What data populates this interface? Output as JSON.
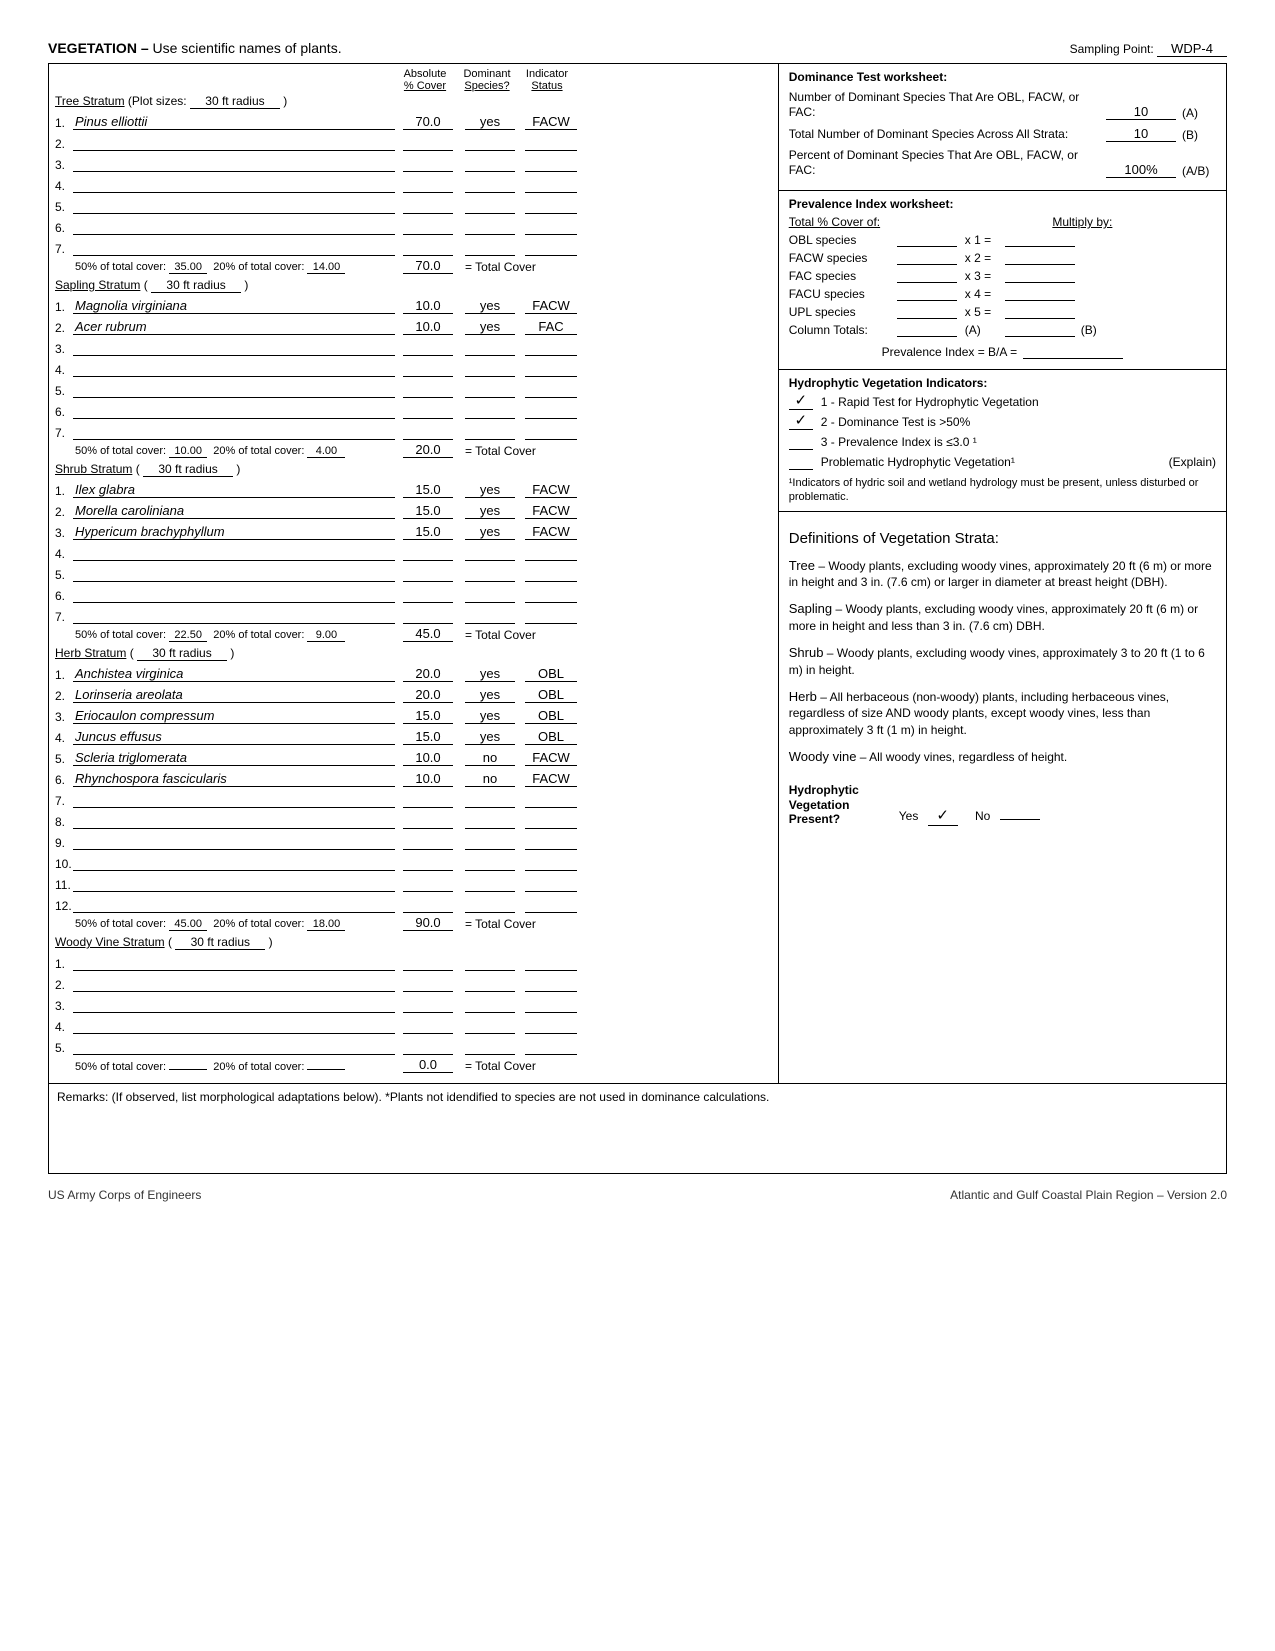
{
  "header": {
    "title_bold": "VEGETATION –",
    "title_rest": " Use scientific names of plants.",
    "sampling_label": "Sampling Point:",
    "sampling_value": "WDP-4"
  },
  "col_headers": {
    "c1a": "Absolute",
    "c1b": "% Cover",
    "c2a": "Dominant",
    "c2b": "Species?",
    "c3a": "Indicator",
    "c3b": "Status"
  },
  "strata": {
    "tree": {
      "label": "Tree Stratum",
      "plot_label": "(Plot sizes:",
      "plot_size": "30 ft radius",
      "plot_close": ")",
      "rows": 7,
      "species": [
        {
          "n": "1.",
          "name": "Pinus elliottii",
          "cover": "70.0",
          "dom": "yes",
          "stat": "FACW"
        }
      ],
      "p50": "35.00",
      "p20": "14.00",
      "total": "70.0"
    },
    "sapling": {
      "label": "Sapling Stratum",
      "plot_label": "(",
      "plot_size": "30 ft radius",
      "plot_close": ")",
      "rows": 7,
      "species": [
        {
          "n": "1.",
          "name": "Magnolia virginiana",
          "cover": "10.0",
          "dom": "yes",
          "stat": "FACW"
        },
        {
          "n": "2.",
          "name": "Acer rubrum",
          "cover": "10.0",
          "dom": "yes",
          "stat": "FAC"
        }
      ],
      "p50": "10.00",
      "p20": "4.00",
      "total": "20.0"
    },
    "shrub": {
      "label": "Shrub Stratum",
      "plot_label": "(",
      "plot_size": "30 ft radius",
      "plot_close": ")",
      "rows": 7,
      "species": [
        {
          "n": "1.",
          "name": "Ilex glabra",
          "cover": "15.0",
          "dom": "yes",
          "stat": "FACW"
        },
        {
          "n": "2.",
          "name": "Morella caroliniana",
          "cover": "15.0",
          "dom": "yes",
          "stat": "FACW"
        },
        {
          "n": "3.",
          "name": "Hypericum brachyphyllum",
          "cover": "15.0",
          "dom": "yes",
          "stat": "FACW"
        }
      ],
      "p50": "22.50",
      "p20": "9.00",
      "total": "45.0"
    },
    "herb": {
      "label": "Herb Stratum",
      "plot_label": "(",
      "plot_size": "30 ft radius",
      "plot_close": ")",
      "rows": 12,
      "species": [
        {
          "n": "1.",
          "name": "Anchistea virginica",
          "cover": "20.0",
          "dom": "yes",
          "stat": "OBL"
        },
        {
          "n": "2.",
          "name": "Lorinseria areolata",
          "cover": "20.0",
          "dom": "yes",
          "stat": "OBL"
        },
        {
          "n": "3.",
          "name": "Eriocaulon compressum",
          "cover": "15.0",
          "dom": "yes",
          "stat": "OBL"
        },
        {
          "n": "4.",
          "name": "Juncus effusus",
          "cover": "15.0",
          "dom": "yes",
          "stat": "OBL"
        },
        {
          "n": "5.",
          "name": "Scleria triglomerata",
          "cover": "10.0",
          "dom": "no",
          "stat": "FACW"
        },
        {
          "n": "6.",
          "name": "Rhynchospora fascicularis",
          "cover": "10.0",
          "dom": "no",
          "stat": "FACW"
        }
      ],
      "p50": "45.00",
      "p20": "18.00",
      "total": "90.0"
    },
    "vine": {
      "label": "Woody Vine Stratum",
      "plot_label": "(",
      "plot_size": "30 ft radius",
      "plot_close": ")",
      "rows": 5,
      "species": [],
      "p50": "",
      "p20": "",
      "total": "0.0"
    }
  },
  "totals_text": {
    "p50": "50% of total cover:",
    "p20": "20% of total cover:",
    "tc": "= Total Cover"
  },
  "dominance": {
    "title": "Dominance Test worksheet:",
    "r1": "Number of Dominant Species That Are OBL, FACW, or FAC:",
    "v1": "10",
    "s1": "(A)",
    "r2": "Total Number of Dominant Species Across All Strata:",
    "v2": "10",
    "s2": "(B)",
    "r3": "Percent of Dominant Species That Are OBL, FACW, or FAC:",
    "v3": "100%",
    "s3": "(A/B)"
  },
  "prevalence": {
    "title": "Prevalence Index worksheet:",
    "h1": "Total % Cover of:",
    "h2": "Multiply by:",
    "rows": [
      {
        "lab": "OBL species",
        "mul": "x 1 ="
      },
      {
        "lab": "FACW species",
        "mul": "x 2 ="
      },
      {
        "lab": "FAC species",
        "mul": "x 3 ="
      },
      {
        "lab": "FACU species",
        "mul": "x 4 ="
      },
      {
        "lab": "UPL species",
        "mul": "x 5 ="
      }
    ],
    "coltot": "Column Totals:",
    "a": "(A)",
    "b": "(B)",
    "pi": "Prevalence Index  = B/A ="
  },
  "hvi": {
    "title": "Hydrophytic Vegetation Indicators:",
    "i1": {
      "chk": "✓",
      "txt": "1 - Rapid Test for Hydrophytic Vegetation"
    },
    "i2": {
      "chk": "✓",
      "txt": "2 - Dominance Test is >50%"
    },
    "i3": {
      "chk": "",
      "txt": "3 - Prevalence Index is ≤3.0 ¹"
    },
    "i4": {
      "chk": "",
      "txt": "Problematic Hydrophytic Vegetation¹",
      "suffix": "(Explain)"
    },
    "note": "¹Indicators of hydric soil and wetland hydrology must be present, unless disturbed or problematic."
  },
  "defs": {
    "title": "Definitions of Vegetation Strata:",
    "tree": {
      "lab": "Tree",
      "txt": " – Woody plants, excluding woody vines, approximately 20 ft (6 m) or more in height and 3 in. (7.6 cm) or larger in diameter at breast height (DBH)."
    },
    "sapling": {
      "lab": "Sapling",
      "txt": " – Woody plants, excluding woody vines, approximately 20 ft (6 m) or more in height and less than 3 in. (7.6 cm) DBH."
    },
    "shrub": {
      "lab": "Shrub",
      "txt": " – Woody plants, excluding woody vines, approximately 3 to 20 ft (1 to 6 m) in height."
    },
    "herb": {
      "lab": "Herb",
      "txt": " – All herbaceous (non-woody) plants, including herbaceous vines, regardless of size AND woody plants, except woody vines, less than approximately 3 ft (1 m) in height."
    },
    "vine": {
      "lab": "Woody vine",
      "txt": " – All woody vines, regardless of height."
    }
  },
  "hydro_present": {
    "lab": "Hydrophytic\nVegetation\nPresent?",
    "yes": "Yes",
    "yes_chk": "✓",
    "no": "No",
    "no_chk": ""
  },
  "remarks": {
    "label": "Remarks:  (If observed, list morphological adaptations below).  *Plants not idendified to species are not used in dominance calculations."
  },
  "footer": {
    "left": "US Army Corps of Engineers",
    "right": "Atlantic and Gulf Coastal Plain Region – Version 2.0"
  }
}
